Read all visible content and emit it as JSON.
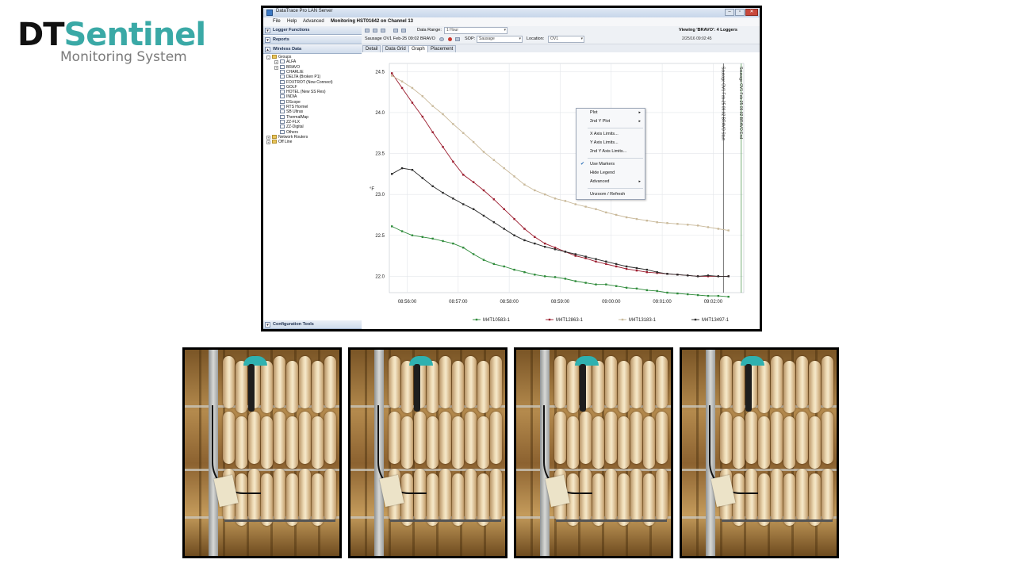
{
  "brand": {
    "name_dark": "DT",
    "name_accent": "Sentinel",
    "subtitle": "Monitoring System",
    "colors": {
      "dark": "#111111",
      "accent": "#3aa9a6",
      "subtitle": "#7a7a7a"
    }
  },
  "window": {
    "title": "DataTrace Pro LAN Server",
    "buttons": [
      "–",
      "▫",
      "✕"
    ]
  },
  "menubar": {
    "items": [
      "File",
      "Help",
      "Advanced"
    ],
    "monitoring": "Monitoring HST01642 on Channel 13"
  },
  "sidebar": {
    "logger_functions": "Logger Functions",
    "reports": "Reports",
    "wireless_data": "Wireless Data",
    "configuration_tools": "Configuration Tools",
    "tree": [
      {
        "label": "Groups",
        "level": 0,
        "icon": "folder-icon",
        "expand": "-"
      },
      {
        "label": "ALFA",
        "level": 1,
        "icon": "grid-icon",
        "expand": "+"
      },
      {
        "label": "BRAVO",
        "level": 1,
        "icon": "grid-icon",
        "expand": "+"
      },
      {
        "label": "CHARLIE",
        "level": 1,
        "icon": "grid-icon",
        "expand": ""
      },
      {
        "label": "DELTA (Broken P1)",
        "level": 1,
        "icon": "grid-icon",
        "expand": ""
      },
      {
        "label": "FOXTROT (Now Connect)",
        "level": 1,
        "icon": "grid-icon",
        "expand": ""
      },
      {
        "label": "GOLF",
        "level": 1,
        "icon": "grid-icon",
        "expand": ""
      },
      {
        "label": "HOTEL (New SS Res)",
        "level": 1,
        "icon": "grid-icon",
        "expand": ""
      },
      {
        "label": "INDIA",
        "level": 1,
        "icon": "grid-icon",
        "expand": ""
      },
      {
        "label": "DScope",
        "level": 1,
        "icon": "grid-icon",
        "expand": ""
      },
      {
        "label": "RTS Hormel",
        "level": 1,
        "icon": "grid-icon",
        "expand": ""
      },
      {
        "label": "SB Ultras",
        "level": 1,
        "icon": "grid-icon",
        "expand": ""
      },
      {
        "label": "ThermalMap",
        "level": 1,
        "icon": "grid-icon",
        "expand": ""
      },
      {
        "label": "ZZ-FLX",
        "level": 1,
        "icon": "grid-icon",
        "expand": ""
      },
      {
        "label": "ZZ-Digital",
        "level": 1,
        "icon": "grid-icon",
        "expand": ""
      },
      {
        "label": "Others",
        "level": 1,
        "icon": "grid-icon",
        "expand": ""
      },
      {
        "label": "Network Routers",
        "level": 0,
        "icon": "folder-icon",
        "expand": "+"
      },
      {
        "label": "Off Line",
        "level": 0,
        "icon": "folder-icon",
        "expand": "+"
      }
    ]
  },
  "toolbar": {
    "data_range_label": "Data Range:",
    "data_range_value": "1 Hour",
    "viewing": "Viewing 'BRAVO': 4 Loggers",
    "timestamp": "2/25/16 09:02:45",
    "run_name": "Sausage OV1 Feb-25 09:02 BRAVO",
    "sop_label": "SOP:",
    "sop_value": "Sausage",
    "location_label": "Location:",
    "location_value": "OV1"
  },
  "tabs": [
    "Detail",
    "Data Grid",
    "Graph",
    "Placement"
  ],
  "active_tab": "Graph",
  "context_menu": {
    "items": [
      {
        "label": "Plot",
        "submenu": true,
        "checked": false
      },
      {
        "label": "2nd Y Plot",
        "submenu": true,
        "checked": false
      },
      {
        "sep": true
      },
      {
        "label": "X Axis Limits...",
        "submenu": false,
        "checked": false
      },
      {
        "label": "Y Axis Limits...",
        "submenu": false,
        "checked": false
      },
      {
        "label": "2nd Y Axis Limits...",
        "submenu": false,
        "checked": false
      },
      {
        "sep": true
      },
      {
        "label": "Use Markers",
        "submenu": false,
        "checked": true
      },
      {
        "label": "Hide Legend",
        "submenu": false,
        "checked": false
      },
      {
        "label": "Advanced",
        "submenu": true,
        "checked": false
      },
      {
        "sep": true
      },
      {
        "label": "Unzoom / Refresh",
        "submenu": false,
        "checked": false
      }
    ]
  },
  "chart_data": {
    "type": "line",
    "ylabel": "°F",
    "ylim": [
      21.8,
      24.6
    ],
    "yticks": [
      22.0,
      22.5,
      23.0,
      23.5,
      24.0,
      24.5
    ],
    "xticks": [
      "08:56:00",
      "08:57:00",
      "08:58:00",
      "08:59:00",
      "09:00:00",
      "09:01:00",
      "09:02:00"
    ],
    "x": [
      -0.3,
      -0.1,
      0.1,
      0.3,
      0.5,
      0.7,
      0.9,
      1.1,
      1.3,
      1.5,
      1.7,
      1.9,
      2.1,
      2.3,
      2.5,
      2.7,
      2.9,
      3.1,
      3.3,
      3.5,
      3.7,
      3.9,
      4.1,
      4.3,
      4.5,
      4.7,
      4.9,
      5.1,
      5.3,
      5.5,
      5.7,
      5.9,
      6.1,
      6.3
    ],
    "xlim": [
      -0.35,
      6.6
    ],
    "grid": true,
    "legend_position": "bottom",
    "markers": [
      {
        "label": "Sausage OV1 Feb-25 09:02 BRAVO Start",
        "x": 6.2
      },
      {
        "label": "Sausage OV1 Feb-25 09:02 BRAVO End",
        "x": 6.55
      }
    ],
    "series": [
      {
        "name": "M4T10583-1",
        "color": "#2e8b3a",
        "values": [
          22.61,
          22.55,
          22.5,
          22.48,
          22.46,
          22.43,
          22.4,
          22.35,
          22.27,
          22.2,
          22.15,
          22.12,
          22.08,
          22.05,
          22.02,
          22.0,
          21.99,
          21.97,
          21.94,
          21.92,
          21.9,
          21.9,
          21.88,
          21.86,
          21.85,
          21.83,
          21.82,
          21.8,
          21.79,
          21.78,
          21.77,
          21.76,
          21.76,
          21.75
        ]
      },
      {
        "name": "M4T12863-1",
        "color": "#9b1c2e",
        "values": [
          24.48,
          24.3,
          24.12,
          23.95,
          23.76,
          23.58,
          23.4,
          23.24,
          23.15,
          23.05,
          22.94,
          22.82,
          22.7,
          22.58,
          22.48,
          22.4,
          22.35,
          22.3,
          22.25,
          22.22,
          22.18,
          22.15,
          22.12,
          22.09,
          22.07,
          22.05,
          22.04,
          22.03,
          22.02,
          22.01,
          22.0,
          22.0,
          22.0,
          22.0
        ]
      },
      {
        "name": "M4T13183-1",
        "color": "#c9b99a",
        "values": [
          24.45,
          24.38,
          24.3,
          24.2,
          24.08,
          23.98,
          23.86,
          23.75,
          23.64,
          23.52,
          23.42,
          23.32,
          23.22,
          23.12,
          23.05,
          23.0,
          22.95,
          22.92,
          22.88,
          22.85,
          22.82,
          22.78,
          22.75,
          22.72,
          22.7,
          22.68,
          22.66,
          22.65,
          22.64,
          22.63,
          22.62,
          22.6,
          22.58,
          22.56
        ]
      },
      {
        "name": "M4T13497-1",
        "color": "#2b2b2b",
        "values": [
          23.25,
          23.32,
          23.3,
          23.2,
          23.1,
          23.02,
          22.95,
          22.88,
          22.82,
          22.74,
          22.66,
          22.58,
          22.5,
          22.44,
          22.4,
          22.36,
          22.33,
          22.3,
          22.27,
          22.24,
          22.21,
          22.18,
          22.15,
          22.12,
          22.1,
          22.08,
          22.05,
          22.03,
          22.02,
          22.01,
          22.0,
          22.01,
          22.0,
          22.0
        ]
      }
    ]
  },
  "photos": [
    "sausage-probe-photo-1",
    "sausage-probe-photo-2",
    "sausage-probe-photo-3",
    "sausage-probe-photo-4"
  ]
}
